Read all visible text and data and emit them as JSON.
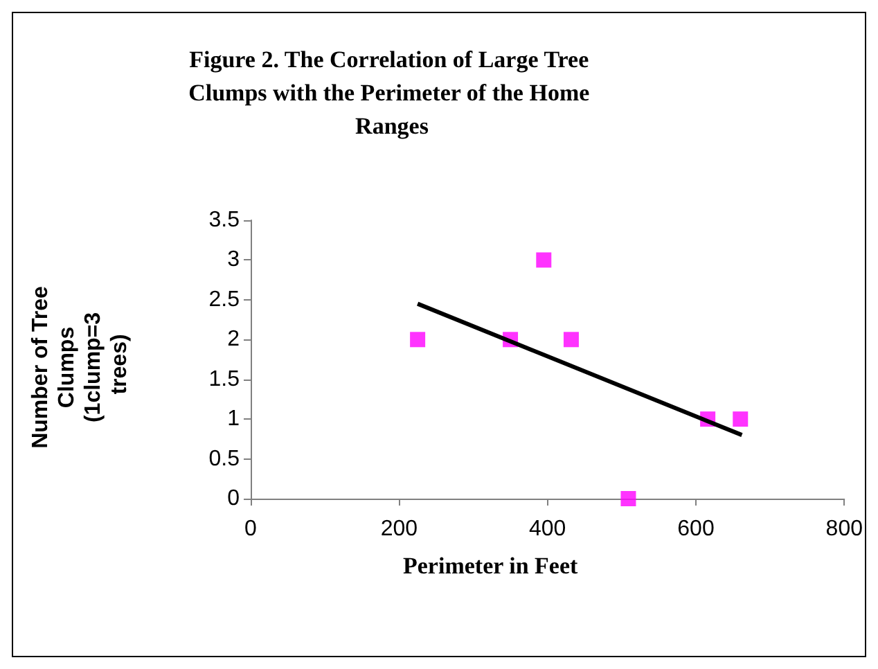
{
  "chart_data": {
    "type": "scatter",
    "title": "Figure 2. The Correlation of Large Tree Clumps with the Perimeter of the Home Ranges",
    "xlabel": "Perimeter in Feet",
    "ylabel": "Number of Tree Clumps (1clump=3 trees)",
    "x": [
      225,
      350,
      395,
      432,
      509,
      616,
      660
    ],
    "series": [
      {
        "color": "#ff00ff",
        "values": [
          2,
          2,
          3,
          2,
          0,
          1,
          1
        ]
      },
      {
        "type": "line",
        "color": "#000000",
        "marker": "none",
        "x": [
          225,
          662
        ],
        "values": [
          2.45,
          0.8
        ]
      }
    ],
    "xlim": [
      0,
      800
    ],
    "xticks": [
      0,
      200,
      400,
      600,
      800
    ],
    "ylim": [
      0,
      3.5
    ],
    "yticks": [
      0,
      0.5,
      1,
      1.5,
      2,
      2.5,
      3,
      3.5
    ],
    "grid": false,
    "marker": "square"
  }
}
